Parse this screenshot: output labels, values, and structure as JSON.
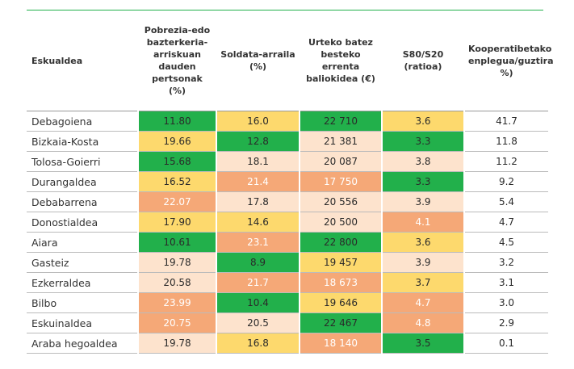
{
  "table": {
    "headers": [
      "Eskualdea",
      "Pobrezia-edo bazterkeria-arriskuan dauden pertsonak (%)",
      "Soldata-arraila (%)",
      "Urteko batez besteko errenta baliokidea (€)",
      "S80/S20 (ratioa)",
      "Kooperatibetako enplegua/guztira %)"
    ],
    "palette": {
      "g": {
        "fill": "#22b04b",
        "ink": "#2a2a2a"
      },
      "y": {
        "fill": "#fdd96d",
        "ink": "#2a2a2a"
      },
      "p": {
        "fill": "#fde3cd",
        "ink": "#2a2a2a"
      },
      "o": {
        "fill": "#f5a877",
        "ink": "#ffffff"
      },
      "w": {
        "fill": "#ffffff",
        "ink": "#2a2a2a"
      }
    },
    "rows": [
      {
        "region": "Debagoiena",
        "cells": [
          "11.80",
          "16.0",
          "22 710",
          "3.6",
          "41.7"
        ],
        "fills": [
          "g",
          "y",
          "g",
          "y",
          "w"
        ]
      },
      {
        "region": "Bizkaia-Kosta",
        "cells": [
          "19.66",
          "12.8",
          "21 381",
          "3.3",
          "11.8"
        ],
        "fills": [
          "y",
          "g",
          "p",
          "g",
          "w"
        ]
      },
      {
        "region": "Tolosa-Goierri",
        "cells": [
          "15.68",
          "18.1",
          "20 087",
          "3.8",
          "11.2"
        ],
        "fills": [
          "g",
          "p",
          "p",
          "p",
          "w"
        ]
      },
      {
        "region": "Durangaldea",
        "cells": [
          "16.52",
          "21.4",
          "17 750",
          "3.3",
          "9.2"
        ],
        "fills": [
          "y",
          "o",
          "o",
          "g",
          "w"
        ]
      },
      {
        "region": "Debabarrena",
        "cells": [
          "22.07",
          "17.8",
          "20 556",
          "3.9",
          "5.4"
        ],
        "fills": [
          "o",
          "p",
          "p",
          "p",
          "w"
        ]
      },
      {
        "region": "Donostialdea",
        "cells": [
          "17.90",
          "14.6",
          "20 500",
          "4.1",
          "4.7"
        ],
        "fills": [
          "y",
          "y",
          "p",
          "o",
          "w"
        ]
      },
      {
        "region": "Aiara",
        "cells": [
          "10.61",
          "23.1",
          "22 800",
          "3.6",
          "4.5"
        ],
        "fills": [
          "g",
          "o",
          "g",
          "y",
          "w"
        ]
      },
      {
        "region": "Gasteiz",
        "cells": [
          "19.78",
          "8.9",
          "19 457",
          "3.9",
          "3.2"
        ],
        "fills": [
          "p",
          "g",
          "y",
          "p",
          "w"
        ]
      },
      {
        "region": "Ezkerraldea",
        "cells": [
          "20.58",
          "21.7",
          "18 673",
          "3.7",
          "3.1"
        ],
        "fills": [
          "p",
          "o",
          "o",
          "y",
          "w"
        ]
      },
      {
        "region": "Bilbo",
        "cells": [
          "23.99",
          "10.4",
          "19 646",
          "4.7",
          "3.0"
        ],
        "fills": [
          "o",
          "g",
          "y",
          "o",
          "w"
        ]
      },
      {
        "region": "Eskuinaldea",
        "cells": [
          "20.75",
          "20.5",
          "22 467",
          "4.8",
          "2.9"
        ],
        "fills": [
          "o",
          "p",
          "g",
          "o",
          "w"
        ]
      },
      {
        "region": "Araba hegoaldea",
        "cells": [
          "19.78",
          "16.8",
          "18 140",
          "3.5",
          "0.1"
        ],
        "fills": [
          "p",
          "y",
          "o",
          "g",
          "w"
        ]
      }
    ]
  }
}
